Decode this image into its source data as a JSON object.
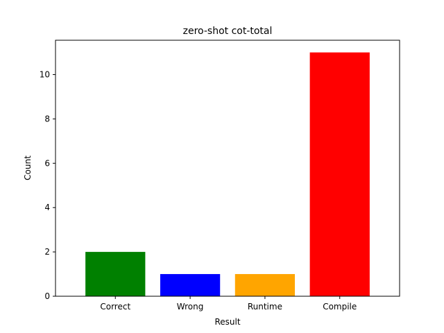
{
  "chart_data": {
    "type": "bar",
    "title": "zero-shot cot-total",
    "xlabel": "Result",
    "ylabel": "Count",
    "categories": [
      "Correct",
      "Wrong",
      "Runtime",
      "Compile"
    ],
    "values": [
      2,
      1,
      1,
      11
    ],
    "colors": [
      "#008000",
      "#0000ff",
      "#ffa500",
      "#ff0000"
    ],
    "ylim": [
      0,
      11.55
    ],
    "yticks": [
      0,
      2,
      4,
      6,
      8,
      10
    ],
    "grid": false,
    "legend": "none"
  }
}
